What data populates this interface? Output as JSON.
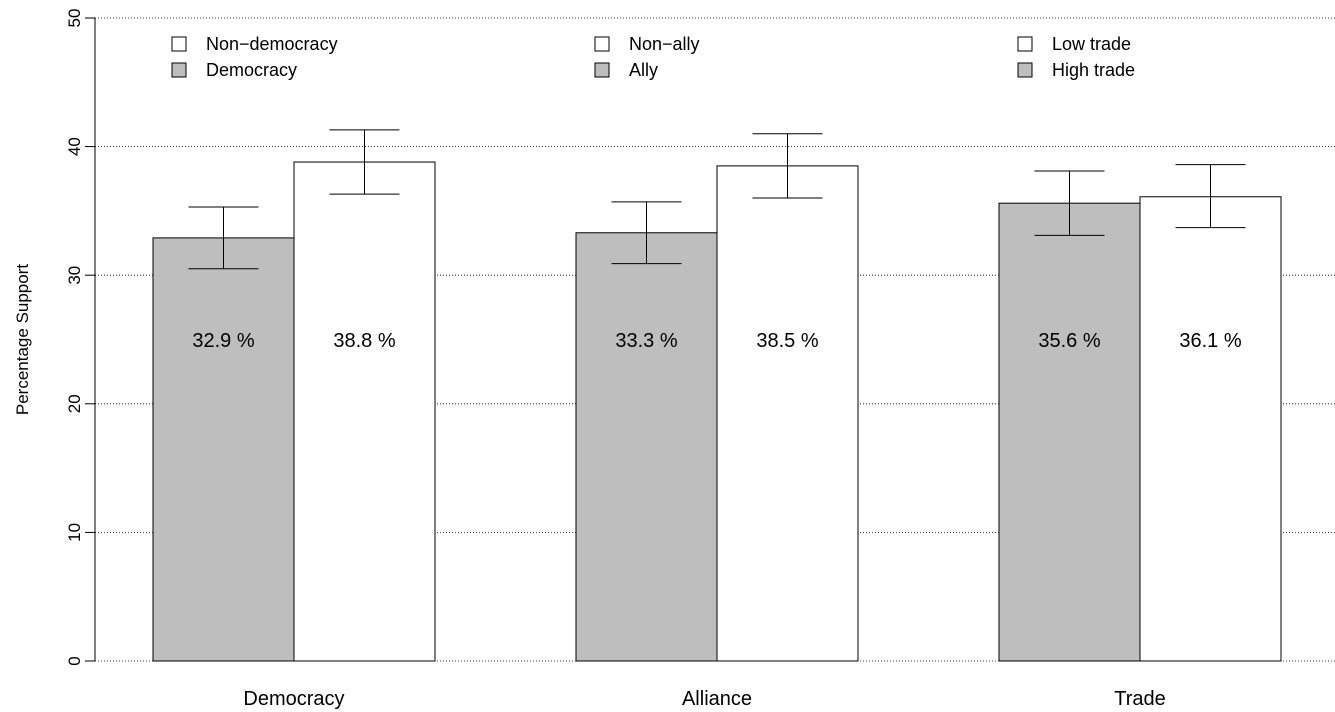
{
  "chart_data": {
    "type": "bar",
    "title": "",
    "xlabel": "",
    "ylabel": "Percentage Support",
    "ylim": [
      0,
      50
    ],
    "yticks": [
      0,
      10,
      20,
      30,
      40,
      50
    ],
    "grid": "horizontal-dotted",
    "groups": [
      {
        "label": "Democracy",
        "bars": [
          {
            "legend": "Democracy",
            "fill": "gray",
            "value": 32.9,
            "label": "32.9 %",
            "ci": [
              30.5,
              35.3
            ]
          },
          {
            "legend": "Non−democracy",
            "fill": "white",
            "value": 38.8,
            "label": "38.8 %",
            "ci": [
              36.3,
              41.3
            ]
          }
        ]
      },
      {
        "label": "Alliance",
        "bars": [
          {
            "legend": "Ally",
            "fill": "gray",
            "value": 33.3,
            "label": "33.3 %",
            "ci": [
              30.9,
              35.7
            ]
          },
          {
            "legend": "Non−ally",
            "fill": "white",
            "value": 38.5,
            "label": "38.5 %",
            "ci": [
              36.0,
              41.0
            ]
          }
        ]
      },
      {
        "label": "Trade",
        "bars": [
          {
            "legend": "High trade",
            "fill": "gray",
            "value": 35.6,
            "label": "35.6 %",
            "ci": [
              33.1,
              38.1
            ]
          },
          {
            "legend": "Low trade",
            "fill": "white",
            "value": 36.1,
            "label": "36.1 %",
            "ci": [
              33.7,
              38.6
            ]
          }
        ]
      }
    ],
    "legends": [
      {
        "position": "top-left",
        "entries": [
          {
            "label": "Non−democracy",
            "fill": "white"
          },
          {
            "label": "Democracy",
            "fill": "gray"
          }
        ]
      },
      {
        "position": "top-center",
        "entries": [
          {
            "label": "Non−ally",
            "fill": "white"
          },
          {
            "label": "Ally",
            "fill": "gray"
          }
        ]
      },
      {
        "position": "top-right",
        "entries": [
          {
            "label": "Low trade",
            "fill": "white"
          },
          {
            "label": "High trade",
            "fill": "gray"
          }
        ]
      }
    ],
    "colors": {
      "gray": "#bebebe",
      "white": "#ffffff",
      "stroke": "#000000"
    }
  }
}
